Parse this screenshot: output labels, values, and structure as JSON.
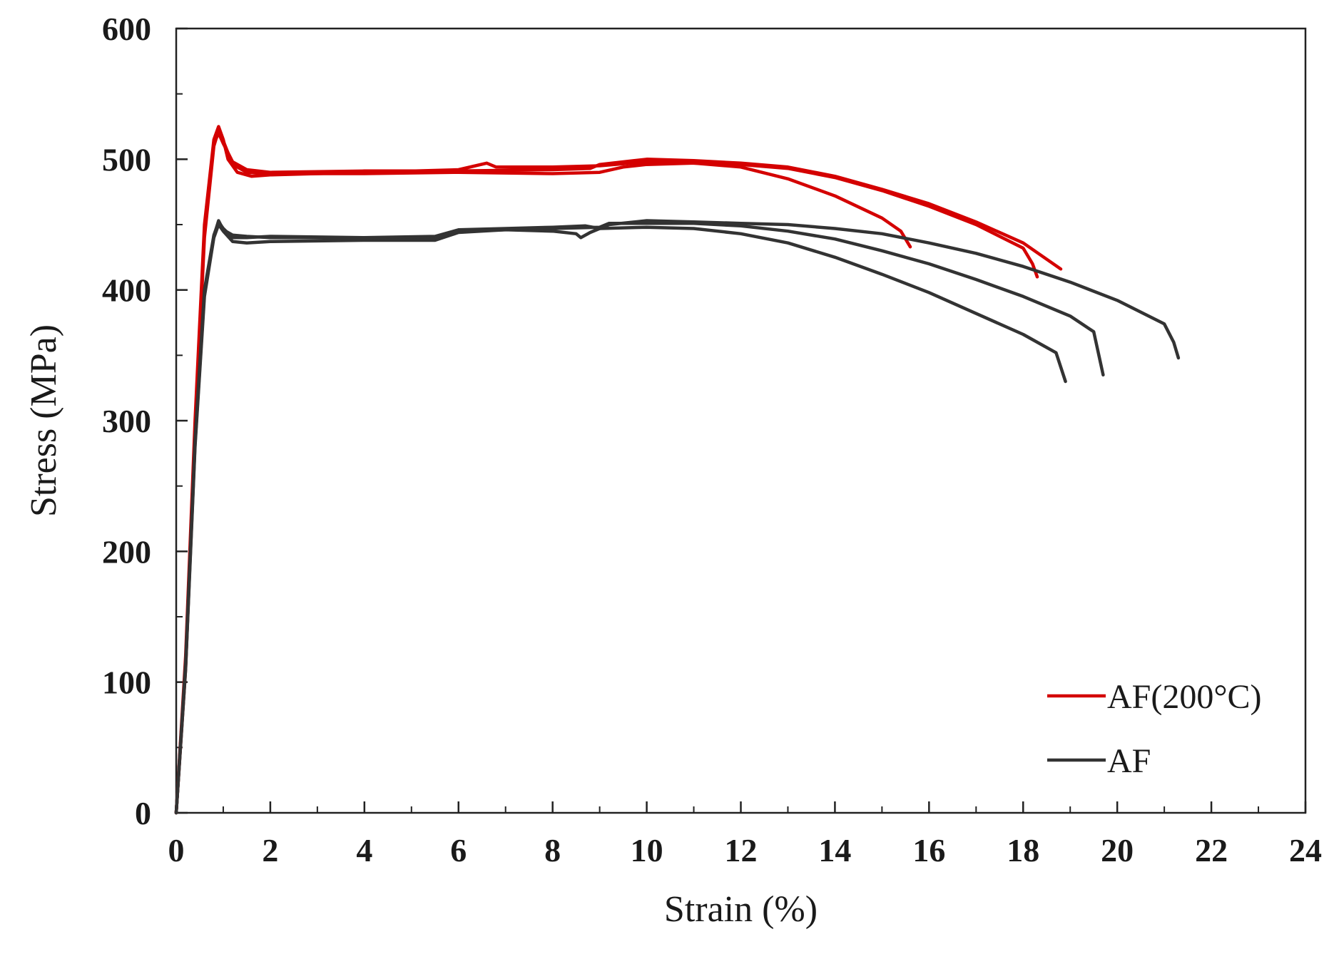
{
  "chart_data": {
    "type": "line",
    "title": "",
    "xlabel": "Strain (%)",
    "ylabel": "Stress (MPa)",
    "xlim": [
      0,
      24
    ],
    "ylim": [
      0,
      600
    ],
    "x_ticks": [
      "0",
      "2",
      "4",
      "6",
      "8",
      "10",
      "12",
      "14",
      "16",
      "18",
      "20",
      "22",
      "24"
    ],
    "y_ticks": [
      "0",
      "100",
      "200",
      "300",
      "400",
      "500",
      "600"
    ],
    "grid": false,
    "legend_position": "bottom-right",
    "colors": {
      "af200": "#d40000",
      "af": "#333333",
      "axis": "#222222"
    },
    "legend": [
      {
        "label": "AF(200°C)",
        "color": "#d40000"
      },
      {
        "label": "AF",
        "color": "#333333"
      }
    ],
    "series": [
      {
        "name": "AF(200°C)",
        "group": "AF(200°C)",
        "color": "#d40000",
        "points": [
          [
            0,
            0
          ],
          [
            0.2,
            120
          ],
          [
            0.4,
            300
          ],
          [
            0.6,
            450
          ],
          [
            0.8,
            515
          ],
          [
            0.9,
            525
          ],
          [
            1.0,
            515
          ],
          [
            1.1,
            500
          ],
          [
            1.3,
            490
          ],
          [
            1.6,
            487
          ],
          [
            2,
            488
          ],
          [
            4,
            490
          ],
          [
            6,
            492
          ],
          [
            6.6,
            497
          ],
          [
            6.8,
            494
          ],
          [
            8,
            494
          ],
          [
            9,
            495
          ],
          [
            10,
            498
          ],
          [
            11,
            497
          ],
          [
            12,
            494
          ],
          [
            13,
            485
          ],
          [
            14,
            472
          ],
          [
            15,
            455
          ],
          [
            15.4,
            445
          ],
          [
            15.6,
            433
          ]
        ]
      },
      {
        "name": "AF(200°C)",
        "group": "AF(200°C)",
        "color": "#d40000",
        "points": [
          [
            0,
            0
          ],
          [
            0.2,
            110
          ],
          [
            0.4,
            290
          ],
          [
            0.6,
            440
          ],
          [
            0.8,
            510
          ],
          [
            0.9,
            522
          ],
          [
            1.0,
            514
          ],
          [
            1.2,
            496
          ],
          [
            1.5,
            490
          ],
          [
            2,
            489
          ],
          [
            4,
            489
          ],
          [
            6,
            490
          ],
          [
            8,
            489
          ],
          [
            9,
            490
          ],
          [
            9.5,
            494
          ],
          [
            10,
            496
          ],
          [
            11,
            497
          ],
          [
            12,
            496
          ],
          [
            13,
            493
          ],
          [
            14,
            486
          ],
          [
            15,
            476
          ],
          [
            16,
            464
          ],
          [
            17,
            450
          ],
          [
            18,
            432
          ],
          [
            18.2,
            420
          ],
          [
            18.3,
            410
          ]
        ]
      },
      {
        "name": "AF(200°C)",
        "group": "AF(200°C)",
        "color": "#d40000",
        "points": [
          [
            0,
            0
          ],
          [
            0.2,
            115
          ],
          [
            0.4,
            295
          ],
          [
            0.6,
            445
          ],
          [
            0.8,
            512
          ],
          [
            0.9,
            520
          ],
          [
            1.0,
            512
          ],
          [
            1.2,
            498
          ],
          [
            1.5,
            492
          ],
          [
            2,
            490
          ],
          [
            4,
            491
          ],
          [
            6,
            491
          ],
          [
            8,
            492
          ],
          [
            8.8,
            493
          ],
          [
            9,
            496
          ],
          [
            10,
            500
          ],
          [
            11,
            499
          ],
          [
            12,
            497
          ],
          [
            13,
            494
          ],
          [
            14,
            487
          ],
          [
            15,
            477
          ],
          [
            16,
            466
          ],
          [
            17,
            452
          ],
          [
            18,
            436
          ],
          [
            18.8,
            416
          ]
        ]
      },
      {
        "name": "AF",
        "group": "AF",
        "color": "#333333",
        "points": [
          [
            0,
            0
          ],
          [
            0.2,
            110
          ],
          [
            0.4,
            280
          ],
          [
            0.6,
            395
          ],
          [
            0.8,
            440
          ],
          [
            0.9,
            450
          ],
          [
            1.0,
            445
          ],
          [
            1.2,
            437
          ],
          [
            1.5,
            436
          ],
          [
            2,
            437
          ],
          [
            4,
            438
          ],
          [
            5.5,
            438
          ],
          [
            6,
            444
          ],
          [
            7,
            446
          ],
          [
            8,
            445
          ],
          [
            8.5,
            443
          ],
          [
            8.6,
            440
          ],
          [
            8.8,
            444
          ],
          [
            9,
            447
          ],
          [
            10,
            448
          ],
          [
            11,
            447
          ],
          [
            12,
            443
          ],
          [
            13,
            436
          ],
          [
            14,
            425
          ],
          [
            15,
            412
          ],
          [
            16,
            398
          ],
          [
            17,
            382
          ],
          [
            18,
            366
          ],
          [
            18.7,
            352
          ],
          [
            18.9,
            330
          ]
        ]
      },
      {
        "name": "AF",
        "group": "AF",
        "color": "#333333",
        "points": [
          [
            0,
            0
          ],
          [
            0.2,
            115
          ],
          [
            0.4,
            285
          ],
          [
            0.6,
            400
          ],
          [
            0.8,
            442
          ],
          [
            0.9,
            452
          ],
          [
            1.0,
            447
          ],
          [
            1.2,
            440
          ],
          [
            1.5,
            440
          ],
          [
            2,
            441
          ],
          [
            4,
            440
          ],
          [
            5.5,
            440
          ],
          [
            6,
            445
          ],
          [
            7,
            446
          ],
          [
            8,
            447
          ],
          [
            9,
            448
          ],
          [
            9.2,
            451
          ],
          [
            10,
            451
          ],
          [
            11,
            451
          ],
          [
            12,
            449
          ],
          [
            13,
            445
          ],
          [
            14,
            439
          ],
          [
            15,
            430
          ],
          [
            16,
            420
          ],
          [
            17,
            408
          ],
          [
            18,
            395
          ],
          [
            19,
            380
          ],
          [
            19.5,
            368
          ],
          [
            19.7,
            335
          ]
        ]
      },
      {
        "name": "AF",
        "group": "AF",
        "color": "#333333",
        "points": [
          [
            0,
            0
          ],
          [
            0.2,
            112
          ],
          [
            0.4,
            282
          ],
          [
            0.6,
            398
          ],
          [
            0.8,
            441
          ],
          [
            0.9,
            453
          ],
          [
            1.0,
            446
          ],
          [
            1.2,
            442
          ],
          [
            1.5,
            441
          ],
          [
            2,
            440
          ],
          [
            4,
            440
          ],
          [
            5.5,
            441
          ],
          [
            6,
            446
          ],
          [
            7,
            447
          ],
          [
            8,
            448
          ],
          [
            8.7,
            449
          ],
          [
            9,
            447
          ],
          [
            9.2,
            450
          ],
          [
            10,
            453
          ],
          [
            11,
            452
          ],
          [
            12,
            451
          ],
          [
            13,
            450
          ],
          [
            14,
            447
          ],
          [
            15,
            443
          ],
          [
            16,
            436
          ],
          [
            17,
            428
          ],
          [
            18,
            418
          ],
          [
            19,
            406
          ],
          [
            20,
            392
          ],
          [
            21,
            374
          ],
          [
            21.2,
            360
          ],
          [
            21.3,
            348
          ]
        ]
      }
    ]
  }
}
